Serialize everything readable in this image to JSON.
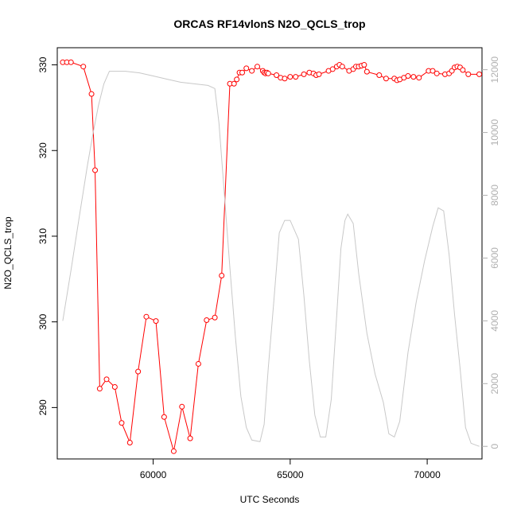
{
  "chart_data": {
    "type": "line",
    "title": "ORCAS RF14vlonS N2O_QCLS_trop",
    "xlabel": "UTC Seconds",
    "ylabel": "N2O_QCLS_trop",
    "xlim": [
      56500,
      72000
    ],
    "ylim": [
      284,
      332
    ],
    "y2lim": [
      -400,
      12700
    ],
    "xticks": [
      60000,
      65000,
      70000
    ],
    "yticks": [
      290,
      300,
      310,
      320,
      330
    ],
    "y2ticks": [
      0,
      2000,
      4000,
      6000,
      8000,
      10000,
      12000
    ],
    "colors": {
      "n2o": "#ff0000",
      "altitude": "#c8c8c8",
      "axis": "#000000",
      "right_axis": "#b0b0b0"
    },
    "series": [
      {
        "axis": "left",
        "style": "line+circles",
        "x": [
          56700,
          56850,
          57000,
          57450,
          57750,
          57880,
          58050,
          58300,
          58600,
          58850,
          59150,
          59450,
          59750,
          60100,
          60400,
          60750,
          61050,
          61350,
          61650,
          61950,
          62250,
          62500,
          62800,
          62950,
          63050,
          63150,
          63250,
          63400,
          63600,
          63800,
          64000,
          64050,
          64100,
          64150,
          64200,
          64500,
          64650,
          64800,
          65000,
          65200,
          65500,
          65700,
          65850,
          65950,
          66050,
          66400,
          66550,
          66700,
          66800,
          66900,
          67150,
          67300,
          67400,
          67500,
          67600,
          67700,
          67800,
          68250,
          68500,
          68800,
          68900,
          69000,
          69150,
          69300,
          69500,
          69700,
          70050,
          70200,
          70350,
          70650,
          70800,
          70900,
          71000,
          71100,
          71200,
          71300,
          71500,
          71900
        ],
        "y": [
          330.3,
          330.3,
          330.3,
          329.8,
          326.6,
          317.7,
          292.2,
          293.3,
          292.4,
          288.2,
          285.9,
          294.2,
          300.6,
          300.1,
          288.9,
          284.9,
          290.1,
          286.4,
          295.1,
          300.2,
          300.5,
          305.4,
          327.8,
          327.8,
          328.3,
          329.1,
          329.1,
          329.6,
          329.3,
          329.8,
          329.3,
          329.1,
          329.0,
          329.1,
          329.0,
          328.8,
          328.5,
          328.4,
          328.6,
          328.6,
          328.9,
          329.1,
          329.0,
          328.8,
          328.9,
          329.3,
          329.5,
          329.8,
          330.0,
          329.8,
          329.3,
          329.5,
          329.8,
          329.8,
          329.9,
          330.0,
          329.2,
          328.8,
          328.4,
          328.4,
          328.2,
          328.3,
          328.5,
          328.7,
          328.6,
          328.5,
          329.3,
          329.3,
          329.0,
          328.9,
          329.0,
          329.3,
          329.7,
          329.8,
          329.7,
          329.4,
          328.9,
          328.9
        ]
      },
      {
        "axis": "right",
        "style": "line",
        "x": [
          56700,
          57000,
          57300,
          57600,
          57800,
          58000,
          58200,
          58400,
          59000,
          59500,
          60000,
          60500,
          61000,
          61500,
          62000,
          62250,
          62400,
          62600,
          62800,
          63000,
          63200,
          63400,
          63600,
          63900,
          64050,
          64200,
          64400,
          64600,
          64800,
          65000,
          65300,
          65500,
          65700,
          65900,
          66100,
          66300,
          66500,
          66700,
          66850,
          67000,
          67100,
          67300,
          67500,
          67800,
          68100,
          68400,
          68600,
          68800,
          69000,
          69300,
          69600,
          69900,
          70200,
          70400,
          70600,
          70800,
          71000,
          71200,
          71400,
          71600,
          71900
        ],
        "y": [
          4000,
          5600,
          7300,
          8950,
          9950,
          10850,
          11550,
          11950,
          11950,
          11900,
          11800,
          11700,
          11600,
          11550,
          11500,
          11400,
          10300,
          8000,
          5700,
          3500,
          1600,
          600,
          200,
          150,
          700,
          2500,
          4600,
          6800,
          7200,
          7200,
          6600,
          4800,
          2700,
          1000,
          300,
          300,
          1500,
          4200,
          6300,
          7200,
          7400,
          7100,
          5500,
          3600,
          2300,
          1400,
          400,
          300,
          800,
          3000,
          4600,
          5900,
          7000,
          7600,
          7500,
          6100,
          4200,
          2500,
          600,
          100,
          0
        ]
      }
    ]
  }
}
